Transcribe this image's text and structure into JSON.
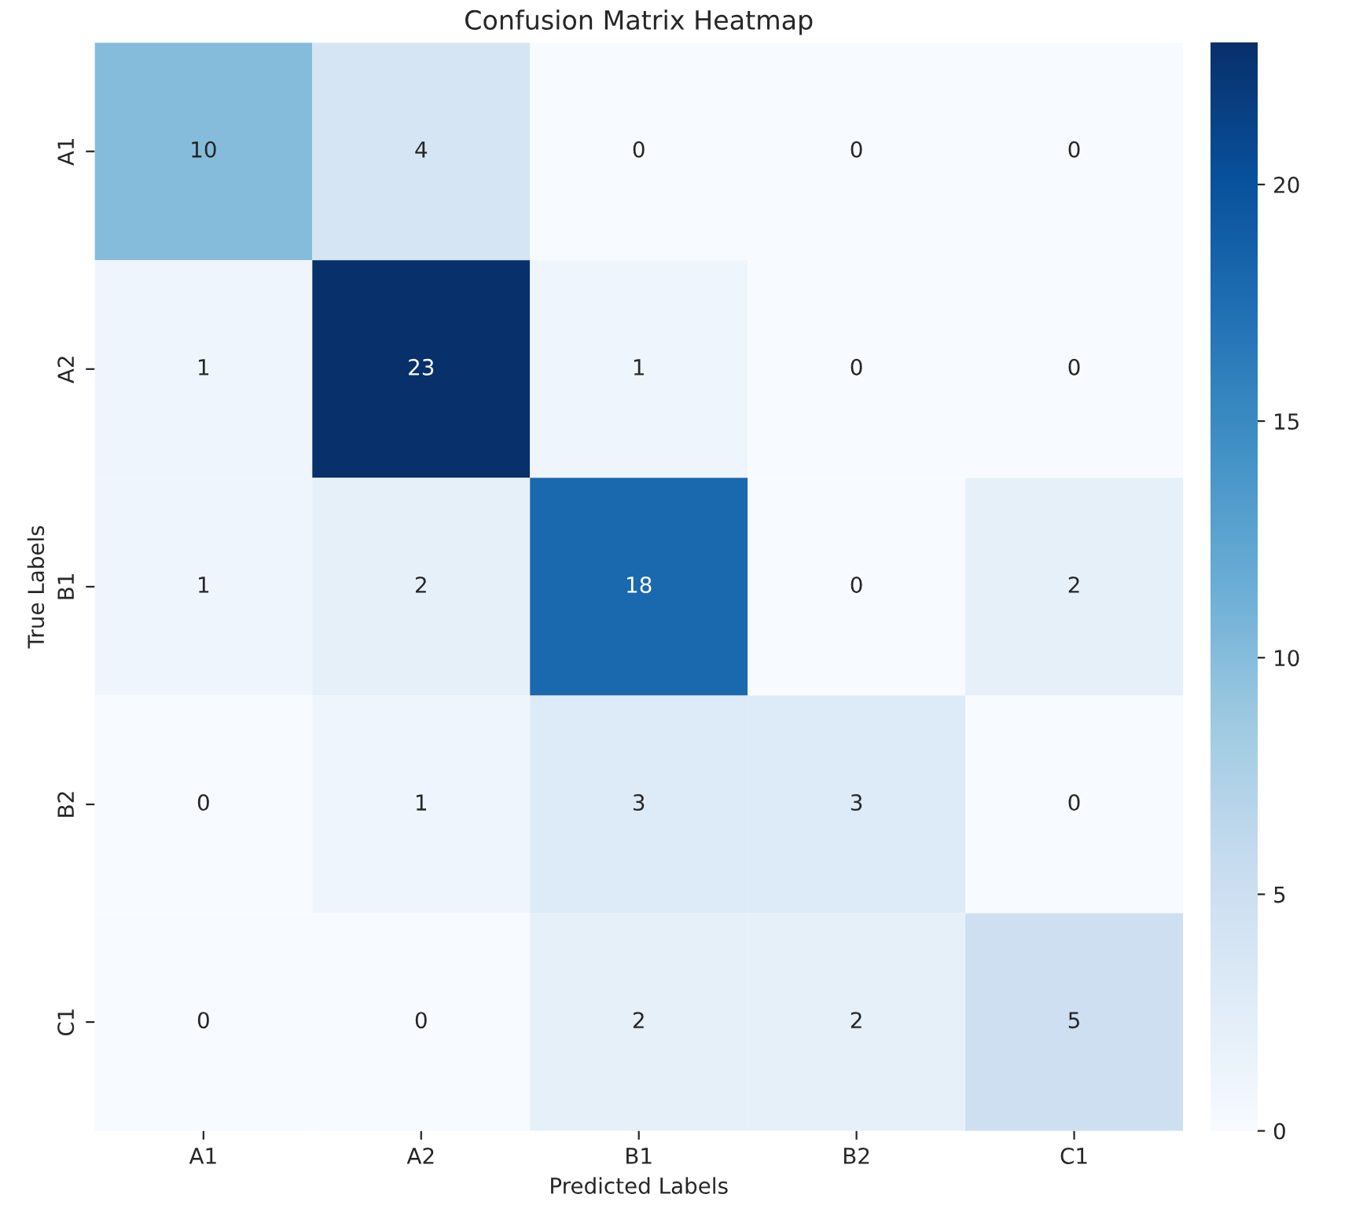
{
  "chart_data": {
    "type": "heatmap",
    "title": "Confusion Matrix Heatmap",
    "xlabel": "Predicted Labels",
    "ylabel": "True Labels",
    "categories": [
      "A1",
      "A2",
      "B1",
      "B2",
      "C1"
    ],
    "y_categories": [
      "A1",
      "A2",
      "B1",
      "B2",
      "C1"
    ],
    "cells": [
      [
        10,
        4,
        0,
        0,
        0
      ],
      [
        1,
        23,
        1,
        0,
        0
      ],
      [
        1,
        2,
        18,
        0,
        2
      ],
      [
        0,
        1,
        3,
        3,
        0
      ],
      [
        0,
        0,
        2,
        2,
        5
      ]
    ],
    "clim": [
      0,
      23
    ],
    "cticks": [
      0,
      5,
      10,
      15,
      20
    ],
    "data_labels": true
  }
}
